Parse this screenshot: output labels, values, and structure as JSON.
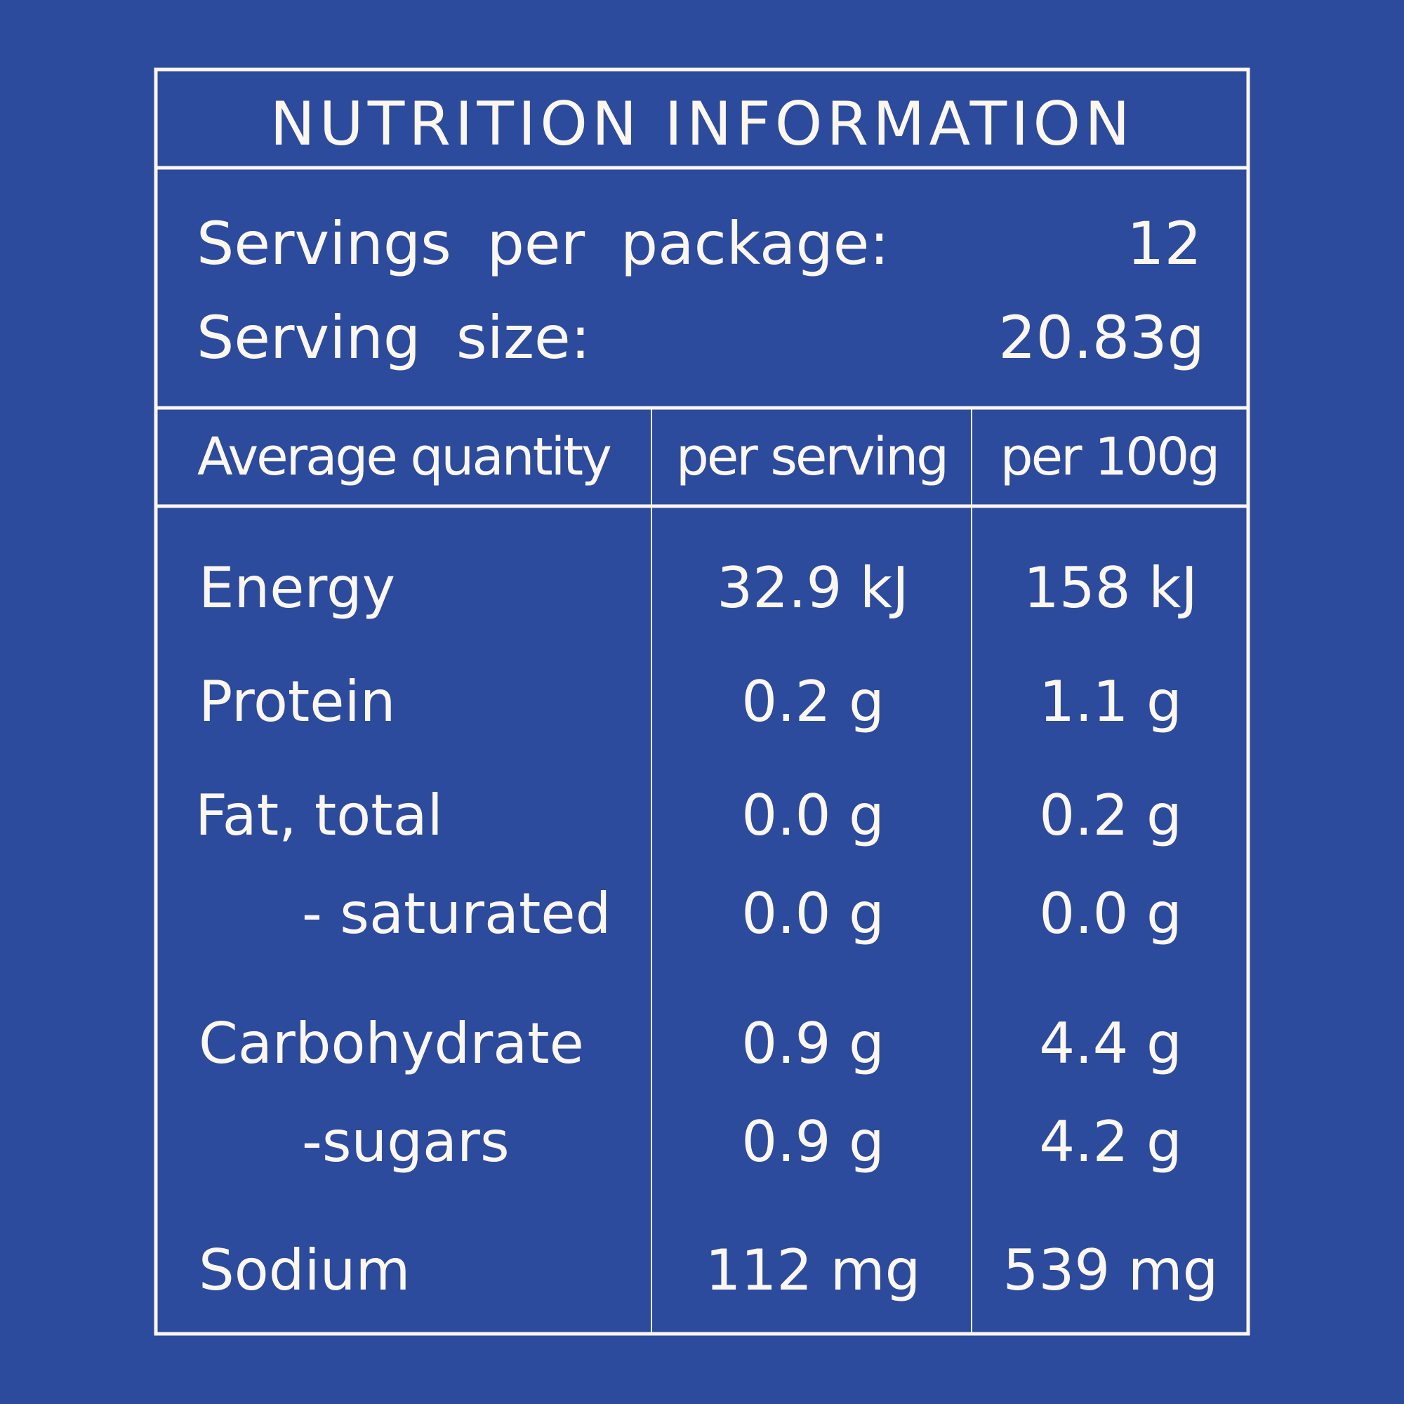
{
  "title": "NUTRITION INFORMATION",
  "servings": [
    {
      "label": "Servings per package:",
      "value": "12"
    },
    {
      "label": "Serving size:",
      "value": "20.83g"
    }
  ],
  "table": {
    "header": [
      "Average quantity",
      "per serving",
      "per 100g"
    ],
    "rows": [
      [
        "Energy",
        "32.9 kJ",
        "158 kJ"
      ],
      [
        "Protein",
        "0.2 g",
        "1.1 g"
      ],
      [
        "Fat, total",
        "0.0 g",
        "0.2 g"
      ],
      [
        "- saturated",
        "0.0 g",
        "0.0 g"
      ],
      [
        "Carbohydrate",
        "0.9 g",
        "4.4 g"
      ],
      [
        "-sugars",
        "0.9 g",
        "4.2 g"
      ],
      [
        "Sodium",
        "112 mg",
        "539 mg"
      ]
    ]
  }
}
